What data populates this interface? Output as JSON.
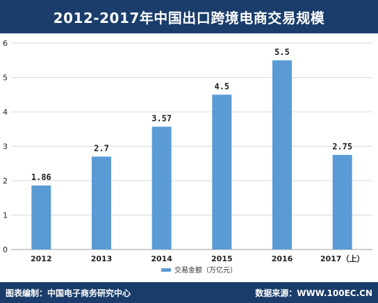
{
  "header": {
    "title": "2012-2017年中国出口跨境电商交易规模"
  },
  "footer": {
    "left": "图表编制：中国电子商务研究中心",
    "right": "数据来源：WWW.100EC.CN"
  },
  "colors": {
    "bar": "#5b9bd5",
    "grid": "#d9d9d9",
    "banner": "#1a3d6b"
  },
  "chart_data": {
    "type": "bar",
    "title": "",
    "categories": [
      "2012",
      "2013",
      "2014",
      "2015",
      "2016",
      "2017（上）"
    ],
    "series": [
      {
        "name": "交易金额（万亿元）",
        "values": [
          1.86,
          2.7,
          3.57,
          4.5,
          5.5,
          2.75
        ]
      }
    ],
    "data_labels": [
      "1.86",
      "2.7",
      "3.57",
      "4.5",
      "5.5",
      "2.75"
    ],
    "ylim": [
      0,
      6
    ],
    "yticks": [
      0,
      1,
      2,
      3,
      4,
      5,
      6
    ],
    "grid": true,
    "legend": "bottom"
  }
}
